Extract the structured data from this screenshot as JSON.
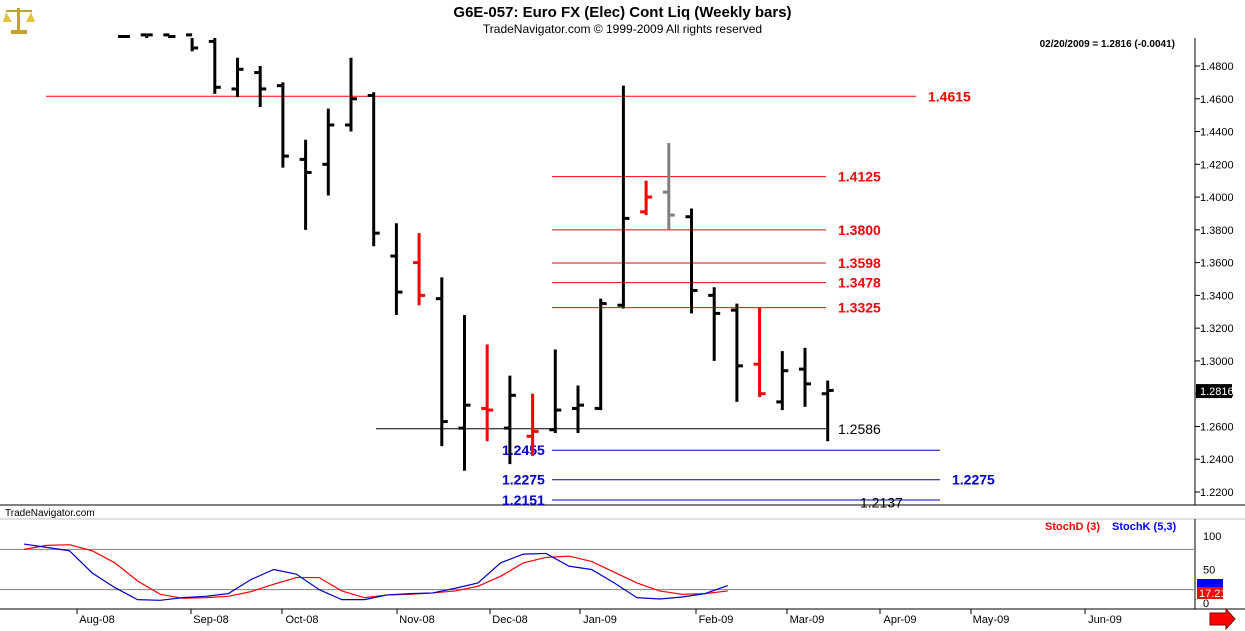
{
  "header": {
    "title": "G6E-057:  Euro FX (Elec) Cont Liq  (Weekly bars)",
    "subtitle": "TradeNavigator.com © 1999-2009 All rights reserved",
    "info": "02/20/2009 = 1.2816 (-0.0041)",
    "watermark": "TradeNavigator.com",
    "logo_icon": "scales-icon"
  },
  "colors": {
    "up_bar": "#000000",
    "red_bar": "#ff0000",
    "gray_bar": "#808080",
    "resistance": "#ff0000",
    "support": "#0000cc",
    "stoch_d": "#ff0000",
    "stoch_k": "#0000ff"
  },
  "chart_data": [
    {
      "type": "ohlc",
      "title": "G6E-057:  Euro FX (Elec) Cont Liq  (Weekly bars)",
      "ylim": [
        1.2,
        1.5
      ],
      "yticks": [
        "1.4800",
        "1.4600",
        "1.4400",
        "1.4200",
        "1.4000",
        "1.3800",
        "1.3600",
        "1.3400",
        "1.3200",
        "1.3000",
        "1.2800",
        "1.2600",
        "1.2400",
        "1.2200"
      ],
      "last_price": "1.2816",
      "x_labels": [
        "Aug-08",
        "Sep-08",
        "Oct-08",
        "Nov-08",
        "Dec-08",
        "Jan-09",
        "Feb-09",
        "Mar-09",
        "Apr-09",
        "May-09",
        "Jun-09"
      ],
      "bars": [
        {
          "o": 1.498,
          "h": 1.5,
          "l": 1.498,
          "c": 1.498,
          "color": "black"
        },
        {
          "o": 1.499,
          "h": 1.5,
          "l": 1.498,
          "c": 1.499,
          "color": "black"
        },
        {
          "o": 1.499,
          "h": 1.5,
          "l": 1.498,
          "c": 1.498,
          "color": "black"
        },
        {
          "o": 1.499,
          "h": 1.5,
          "l": 1.489,
          "c": 1.491,
          "color": "black"
        },
        {
          "o": 1.495,
          "h": 1.5,
          "l": 1.463,
          "c": 1.467,
          "color": "black"
        },
        {
          "o": 1.466,
          "h": 1.485,
          "l": 1.461,
          "c": 1.478,
          "color": "black"
        },
        {
          "o": 1.476,
          "h": 1.48,
          "l": 1.455,
          "c": 1.466,
          "color": "black"
        },
        {
          "o": 1.468,
          "h": 1.47,
          "l": 1.418,
          "c": 1.425,
          "color": "black"
        },
        {
          "o": 1.423,
          "h": 1.435,
          "l": 1.38,
          "c": 1.415,
          "color": "black"
        },
        {
          "o": 1.42,
          "h": 1.454,
          "l": 1.401,
          "c": 1.444,
          "color": "black"
        },
        {
          "o": 1.444,
          "h": 1.485,
          "l": 1.44,
          "c": 1.46,
          "color": "black"
        },
        {
          "o": 1.462,
          "h": 1.464,
          "l": 1.37,
          "c": 1.378,
          "color": "black"
        },
        {
          "o": 1.364,
          "h": 1.384,
          "l": 1.328,
          "c": 1.342,
          "color": "black"
        },
        {
          "o": 1.36,
          "h": 1.378,
          "l": 1.334,
          "c": 1.34,
          "color": "red"
        },
        {
          "o": 1.338,
          "h": 1.351,
          "l": 1.248,
          "c": 1.263,
          "color": "black"
        },
        {
          "o": 1.259,
          "h": 1.328,
          "l": 1.233,
          "c": 1.273,
          "color": "black"
        },
        {
          "o": 1.271,
          "h": 1.31,
          "l": 1.251,
          "c": 1.27,
          "color": "red"
        },
        {
          "o": 1.259,
          "h": 1.291,
          "l": 1.237,
          "c": 1.279,
          "color": "black"
        },
        {
          "o": 1.254,
          "h": 1.28,
          "l": 1.242,
          "c": 1.257,
          "color": "red"
        },
        {
          "o": 1.258,
          "h": 1.307,
          "l": 1.256,
          "c": 1.27,
          "color": "black"
        },
        {
          "o": 1.271,
          "h": 1.285,
          "l": 1.256,
          "c": 1.273,
          "color": "black"
        },
        {
          "o": 1.271,
          "h": 1.338,
          "l": 1.27,
          "c": 1.335,
          "color": "black"
        },
        {
          "o": 1.334,
          "h": 1.468,
          "l": 1.332,
          "c": 1.387,
          "color": "black"
        },
        {
          "o": 1.391,
          "h": 1.41,
          "l": 1.389,
          "c": 1.4,
          "color": "red"
        },
        {
          "o": 1.403,
          "h": 1.433,
          "l": 1.38,
          "c": 1.389,
          "color": "gray"
        },
        {
          "o": 1.388,
          "h": 1.393,
          "l": 1.329,
          "c": 1.343,
          "color": "black"
        },
        {
          "o": 1.34,
          "h": 1.345,
          "l": 1.3,
          "c": 1.329,
          "color": "black"
        },
        {
          "o": 1.331,
          "h": 1.335,
          "l": 1.275,
          "c": 1.297,
          "color": "black"
        },
        {
          "o": 1.298,
          "h": 1.333,
          "l": 1.278,
          "c": 1.28,
          "color": "red"
        },
        {
          "o": 1.275,
          "h": 1.306,
          "l": 1.27,
          "c": 1.294,
          "color": "black"
        },
        {
          "o": 1.295,
          "h": 1.308,
          "l": 1.272,
          "c": 1.286,
          "color": "black"
        },
        {
          "o": 1.28,
          "h": 1.288,
          "l": 1.251,
          "c": 1.282,
          "color": "black"
        }
      ],
      "levels": [
        {
          "value": 1.4615,
          "label": "1.4615",
          "color": "red"
        },
        {
          "value": 1.4125,
          "label": "1.4125",
          "color": "red"
        },
        {
          "value": 1.38,
          "label": "1.3800",
          "color": "red"
        },
        {
          "value": 1.3598,
          "label": "1.3598",
          "color": "red"
        },
        {
          "value": 1.3478,
          "label": "1.3478",
          "color": "red"
        },
        {
          "value": 1.3325,
          "label": "1.3325",
          "color": "red"
        },
        {
          "value": 1.2586,
          "label": "1.2586",
          "color": "black"
        },
        {
          "value": 1.2455,
          "label": "1.2455",
          "color": "blue"
        },
        {
          "value": 1.2275,
          "label": "1.2275",
          "color": "blue"
        },
        {
          "value": 1.2151,
          "label": "1.2151",
          "color": "blue"
        },
        {
          "value": 1.2137,
          "label": "1.2137",
          "color": "black"
        }
      ]
    },
    {
      "type": "line",
      "title": "",
      "ylim": [
        0,
        100
      ],
      "yticks": [
        "100",
        "50",
        "0"
      ],
      "levels": [
        80,
        20
      ],
      "series": [
        {
          "name": "StochD (3)",
          "color": "red",
          "values": [
            80,
            86,
            87,
            78,
            60,
            33,
            13,
            7,
            8,
            10,
            17,
            28,
            38,
            38,
            18,
            8,
            12,
            13,
            15,
            18,
            25,
            40,
            60,
            68,
            70,
            62,
            46,
            30,
            18,
            13,
            14,
            18
          ]
        },
        {
          "name": "StochK (5,3)",
          "color": "blue",
          "values": [
            88,
            83,
            78,
            45,
            23,
            5,
            4,
            8,
            10,
            14,
            35,
            50,
            43,
            20,
            5,
            5,
            12,
            14,
            15,
            22,
            30,
            60,
            73,
            74,
            55,
            50,
            30,
            8,
            6,
            9,
            14,
            26
          ]
        }
      ],
      "last_values": [
        "17.21"
      ]
    }
  ]
}
